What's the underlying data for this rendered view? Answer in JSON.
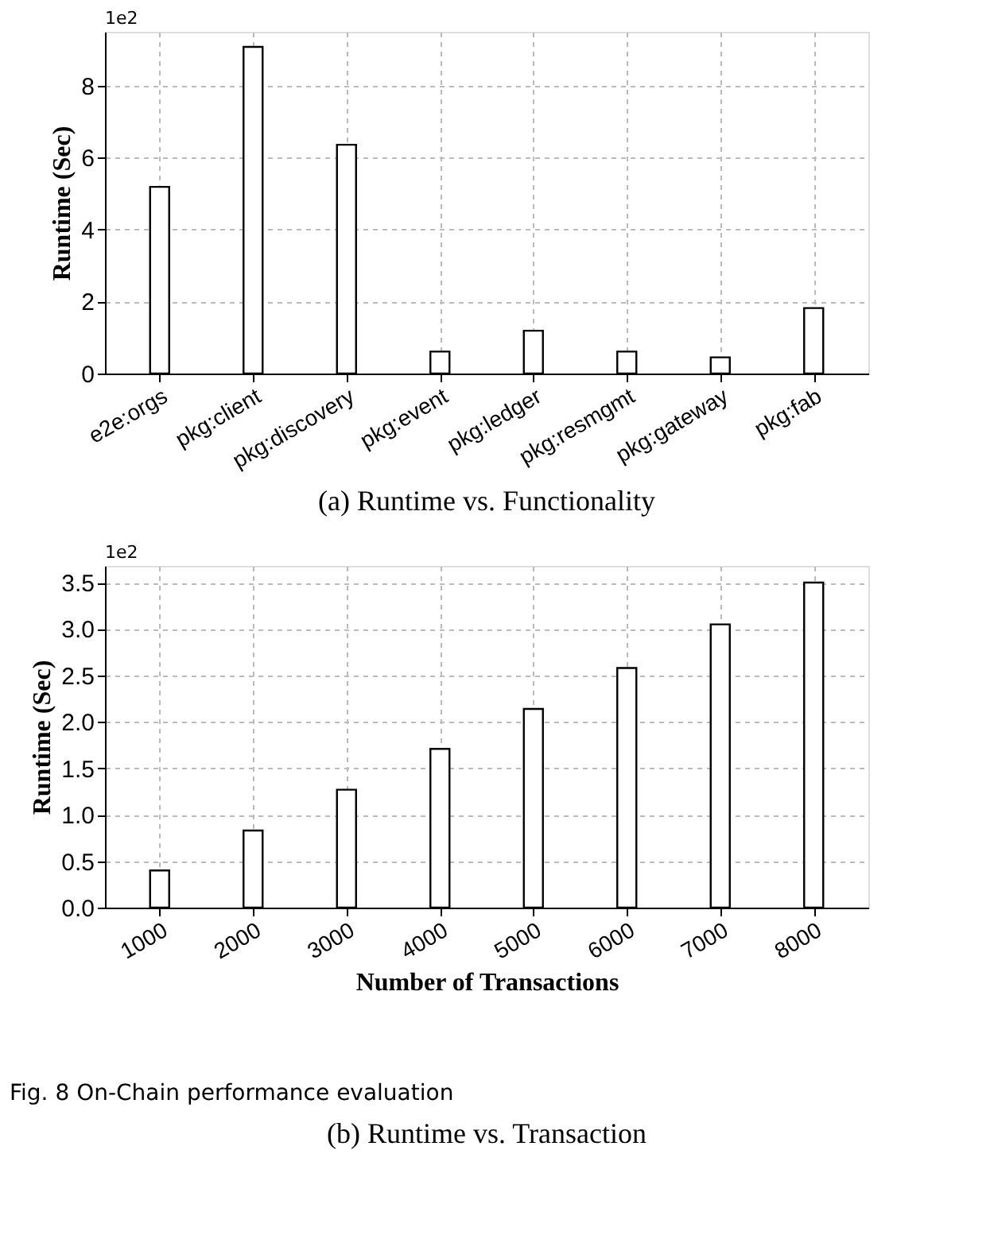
{
  "chart_data": [
    {
      "type": "bar",
      "title": "(a) Runtime vs. Functionality",
      "ylabel": "Runtime (Sec)",
      "categories": [
        "e2e:orgs",
        "pkg:client",
        "pkg:discovery",
        "pkg:event",
        "pkg:ledger",
        "pkg:resmgmt",
        "pkg:gateway",
        "pkg:fab"
      ],
      "values": [
        5.19,
        9.08,
        6.36,
        0.61,
        1.19,
        0.61,
        0.45,
        1.82
      ],
      "color": "#ffffff",
      "ylim": [
        0,
        9.5
      ],
      "yticks": [
        0,
        2,
        4,
        6,
        8
      ],
      "grid": true,
      "annotations": [
        "1e2"
      ]
    },
    {
      "type": "bar",
      "title": "(b) Runtime vs. Transaction",
      "xlabel": "Number of Transactions",
      "ylabel": "Runtime (Sec)",
      "categories": [
        "1000",
        "2000",
        "3000",
        "4000",
        "5000",
        "6000",
        "7000",
        "8000"
      ],
      "values": [
        0.4,
        0.83,
        1.27,
        1.71,
        2.14,
        2.58,
        3.05,
        3.5
      ],
      "color": "#ffffff",
      "ylim": [
        0,
        3.68
      ],
      "yticks": [
        {
          "value": 0,
          "label": "0.0"
        },
        {
          "value": 0.5,
          "label": "0.5"
        },
        {
          "value": 1,
          "label": "1.0"
        },
        {
          "value": 1.5,
          "label": "1.5"
        },
        {
          "value": 2,
          "label": "2.0"
        },
        {
          "value": 2.5,
          "label": "2.5"
        },
        {
          "value": 3,
          "label": "3.0"
        },
        {
          "value": 3.5,
          "label": "3.5"
        }
      ],
      "grid": true,
      "annotations": [
        "1e2",
        "Fig. 8 On-Chain performance evaluation"
      ]
    }
  ]
}
